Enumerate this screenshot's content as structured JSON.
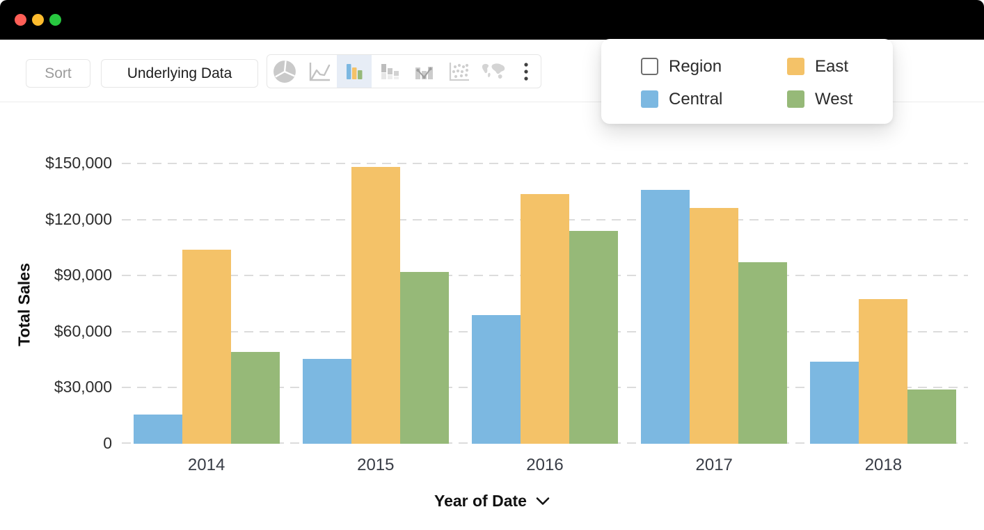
{
  "window": {
    "controls": [
      {
        "name": "close",
        "color": "#ff5f57"
      },
      {
        "name": "minimize",
        "color": "#febc2e"
      },
      {
        "name": "zoom",
        "color": "#28c840"
      }
    ]
  },
  "toolbar": {
    "sort_label": "Sort",
    "underlying_data_label": "Underlying Data",
    "chart_type_icons": [
      {
        "name": "pie-chart-icon",
        "selected": false
      },
      {
        "name": "line-chart-icon",
        "selected": false
      },
      {
        "name": "bar-chart-icon",
        "selected": true
      },
      {
        "name": "stacked-bar-chart-icon",
        "selected": false
      },
      {
        "name": "bar-line-combo-icon",
        "selected": false
      },
      {
        "name": "scatter-plot-icon",
        "selected": false
      },
      {
        "name": "map-chart-icon",
        "selected": false
      },
      {
        "name": "more-options-icon",
        "selected": false
      }
    ]
  },
  "legend_popup": {
    "items": [
      {
        "label": "Region",
        "swatch": "checkbox"
      },
      {
        "label": "East",
        "swatch": "color",
        "color": "#f4c268"
      },
      {
        "label": "Central",
        "swatch": "color",
        "color": "#7cb8e1"
      },
      {
        "label": "West",
        "swatch": "color",
        "color": "#96b978"
      }
    ]
  },
  "chart_data": {
    "type": "bar",
    "title": "",
    "categories": [
      "2014",
      "2015",
      "2016",
      "2017",
      "2018"
    ],
    "series": [
      {
        "name": "Central",
        "color": "#7cb8e1",
        "values": [
          15500,
          45500,
          69000,
          136000,
          44000
        ]
      },
      {
        "name": "East",
        "color": "#f4c268",
        "values": [
          104000,
          148000,
          133500,
          126000,
          77500
        ]
      },
      {
        "name": "West",
        "color": "#96b978",
        "values": [
          49000,
          92000,
          114000,
          97000,
          29000
        ]
      }
    ],
    "xlabel": "Year of Date",
    "ylabel": "Total Sales",
    "ylim": [
      0,
      150000
    ],
    "ytick_step": 30000,
    "ytick_labels": [
      "0",
      "$30,000",
      "$60,000",
      "$90,000",
      "$120,000",
      "$150,000"
    ],
    "grid": "dashed-horizontal",
    "legend_position": "top-right-popup"
  }
}
